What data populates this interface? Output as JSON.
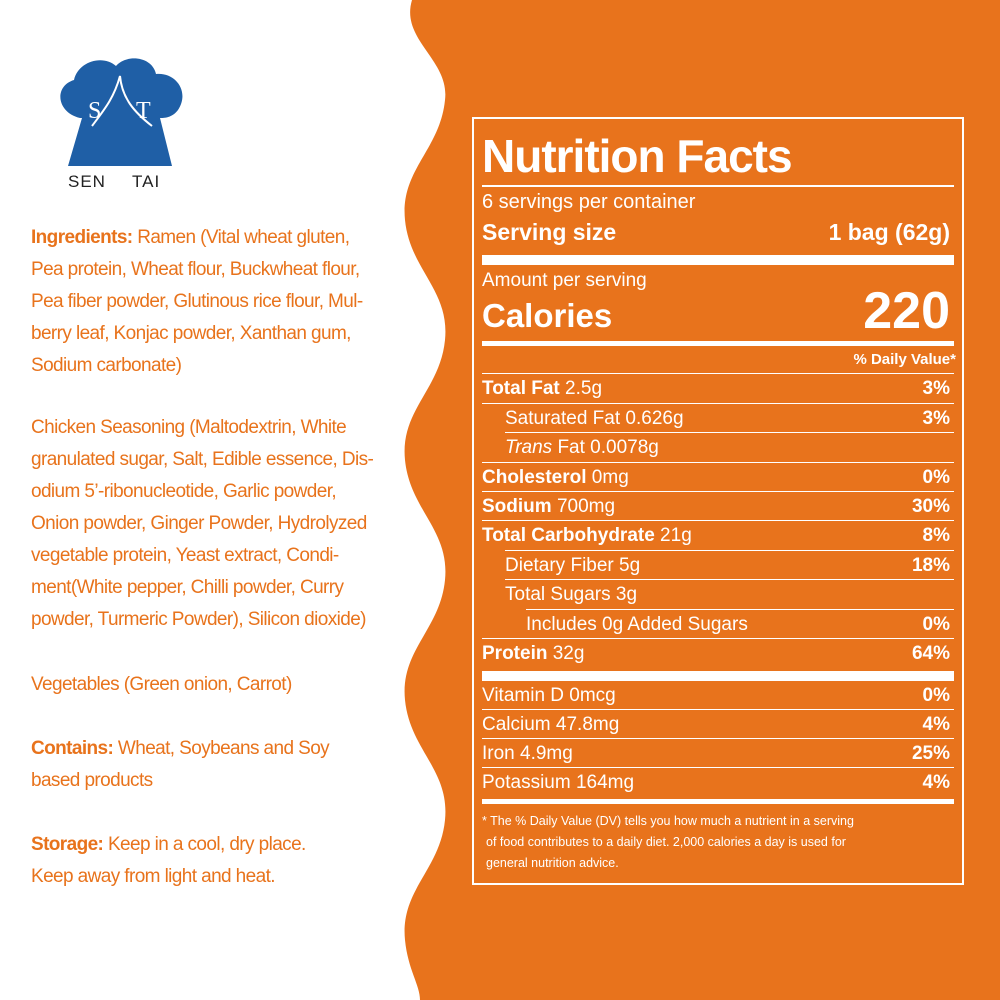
{
  "colors": {
    "accent": "#e8731c",
    "background": "#ffffff",
    "panel_text": "#ffffff",
    "logo_blue": "#1f5fa6"
  },
  "logo": {
    "letter_left": "S",
    "letter_right": "T",
    "caption_left": "SEN",
    "caption_right": "TAI"
  },
  "ingredients": {
    "label": "Ingredients:",
    "lines": [
      " Ramen (Vital wheat gluten,",
      "Pea protein, Wheat flour, Buckwheat flour,",
      "Pea fiber powder, Glutinous rice flour, Mul-",
      "berry leaf, Konjac powder, Xanthan gum,",
      "Sodium carbonate)"
    ]
  },
  "seasoning": {
    "lines": [
      "Chicken Seasoning (Maltodextrin, White",
      "granulated sugar, Salt, Edible essence, Dis-",
      "odium 5’-ribonucleotide, Garlic powder,",
      "Onion powder, Ginger Powder, Hydrolyzed",
      "vegetable protein, Yeast extract, Condi-",
      "ment(White pepper,  Chilli powder, Curry",
      "powder, Turmeric Powder), Silicon dioxide)"
    ]
  },
  "vegetables": {
    "line": "Vegetables (Green onion, Carrot)"
  },
  "contains": {
    "label": "Contains:",
    "lines": [
      "  Wheat, Soybeans and Soy",
      "based products"
    ]
  },
  "storage": {
    "label": "Storage:",
    "lines": [
      " Keep in a cool, dry place.",
      "Keep away from light and heat."
    ]
  },
  "nutrition": {
    "title": "Nutrition Facts",
    "servings_per_container": "6 servings per container",
    "serving_size_label": "Serving size",
    "serving_size_value": "1 bag (62g)",
    "amount_per_serving": "Amount per serving",
    "calories_label": "Calories",
    "calories_value": "220",
    "dv_header": "% Daily Value*",
    "rows": {
      "total_fat": {
        "name": "Total Fat",
        "amount": " 2.5g",
        "dv": "3%"
      },
      "saturated_fat": {
        "name": "Saturated Fat 0.626g",
        "dv": "3%"
      },
      "trans_fat": {
        "name_italic": "Trans",
        "name_rest": " Fat 0.0078g"
      },
      "cholesterol": {
        "name": "Cholesterol",
        "amount": " 0mg",
        "dv": "0%"
      },
      "sodium": {
        "name": "Sodium",
        "amount": " 700mg",
        "dv": "30%"
      },
      "total_carbohydrate": {
        "name": "Total Carbohydrate",
        "amount": " 21g",
        "dv": "8%"
      },
      "dietary_fiber": {
        "name": "Dietary Fiber 5g",
        "dv": "18%"
      },
      "total_sugars": {
        "name": "Total Sugars 3g"
      },
      "added_sugars": {
        "name": "Includes 0g Added Sugars",
        "dv": "0%"
      },
      "protein": {
        "name": "Protein",
        "amount": " 32g",
        "dv": "64%"
      },
      "vitamin_d": {
        "name": "Vitamin D 0mcg",
        "dv": "0%"
      },
      "calcium": {
        "name": "Calcium 47.8mg",
        "dv": "4%"
      },
      "iron": {
        "name": "Iron 4.9mg",
        "dv": "25%"
      },
      "potassium": {
        "name": "Potassium 164mg",
        "dv": "4%"
      }
    },
    "footnote": [
      "* The % Daily Value  (DV) tells you how much a nutrient in a serving",
      "of food contributes to a daily diet.  2,000 calories a day is used for",
      "general nutrition advice."
    ]
  }
}
